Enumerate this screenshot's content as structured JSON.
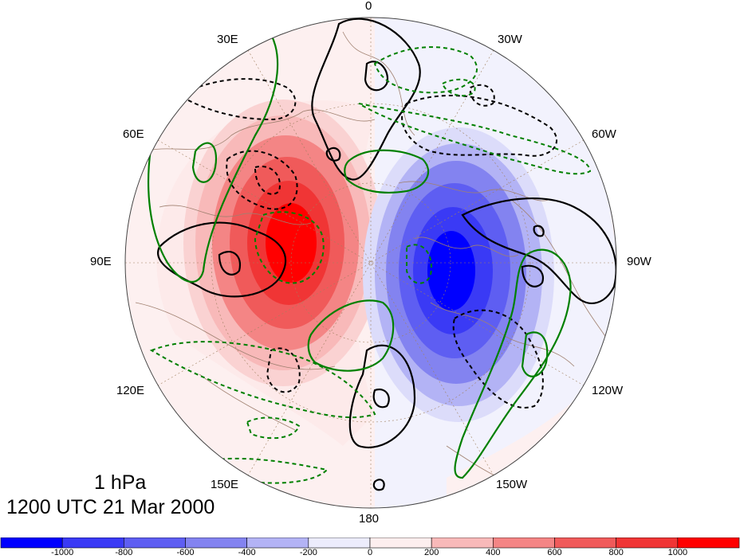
{
  "map": {
    "projection": "north-polar-stereographic",
    "lon_labels": {
      "top": "0",
      "top_left": "30E",
      "top_right": "30W",
      "upper_left": "60E",
      "upper_right": "60W",
      "left": "90E",
      "right": "90W",
      "lower_left": "120E",
      "lower_right": "120W",
      "bottom_left": "150E",
      "bottom_right": "150W",
      "bottom": "180"
    },
    "level_label": "1 hPa",
    "time_label": "1200 UTC 21 Mar 2000",
    "colors": {
      "positive": "#ff0000",
      "negative": "#0000ff",
      "contour_black": "#000000",
      "contour_green": "#008000",
      "coast": "#a08070"
    }
  },
  "colorbar": {
    "tick_labels": [
      "-1000",
      "-800",
      "-600",
      "-400",
      "-200",
      "0",
      "200",
      "400",
      "600",
      "800",
      "1000"
    ],
    "colors": [
      "#0000ff",
      "#3a3af5",
      "#5e5ef2",
      "#8383f0",
      "#b3b3f5",
      "#ececfc",
      "#fdeeee",
      "#f8b9b9",
      "#f48585",
      "#f05a5a",
      "#f03535",
      "#ff0000"
    ]
  }
}
